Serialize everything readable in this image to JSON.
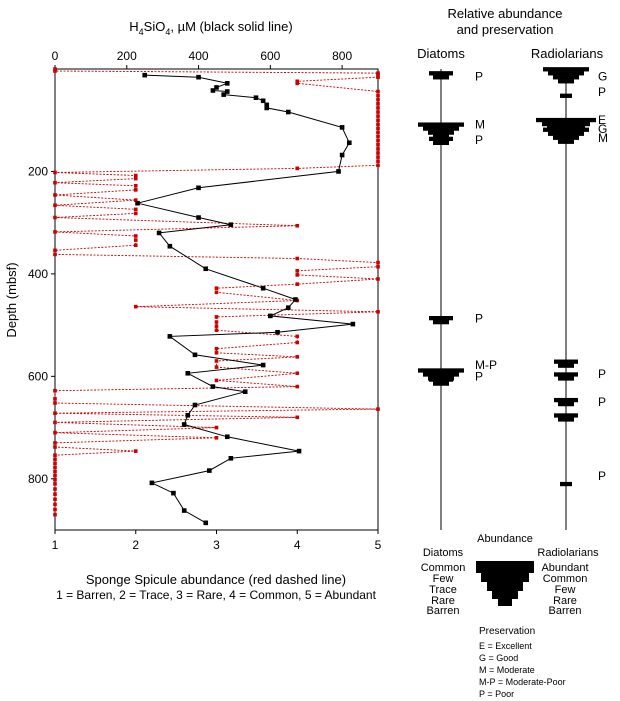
{
  "chart_data": [
    {
      "type": "line",
      "top_axis_label_pre": "H",
      "top_axis_label_sub1": "4",
      "top_axis_label_mid": "SiO",
      "top_axis_label_sub2": "4",
      "top_axis_label_post": ", µM (black solid line)",
      "bottom_axis_label": "Sponge Spicule abundance (red dashed line)",
      "bottom_axis_sublabel": "1 = Barren, 2 = Trace, 3 = Rare, 4 = Common, 5 = Abundant",
      "ylabel": "Depth (mbsf)",
      "ylim": [
        900,
        0
      ],
      "yticks": [
        200,
        400,
        600,
        800
      ],
      "top_xlim": [
        0,
        900
      ],
      "top_xticks": [
        0,
        200,
        400,
        600,
        800
      ],
      "bottom_xlim": [
        1,
        5
      ],
      "bottom_xticks": [
        1,
        2,
        3,
        4,
        5
      ],
      "grid": false,
      "series": [
        {
          "color": "#000000",
          "line": "solid",
          "x_axis": "top",
          "points": [
            [
              250,
              12
            ],
            [
              400,
              16
            ],
            [
              480,
              28
            ],
            [
              450,
              36
            ],
            [
              440,
              42
            ],
            [
              480,
              44
            ],
            [
              470,
              50
            ],
            [
              560,
              56
            ],
            [
              580,
              62
            ],
            [
              590,
              70
            ],
            [
              590,
              76
            ],
            [
              650,
              84
            ],
            [
              800,
              114
            ],
            [
              820,
              144
            ],
            [
              800,
              168
            ],
            [
              790,
              200
            ],
            [
              400,
              232
            ],
            [
              230,
              262
            ],
            [
              400,
              290
            ],
            [
              490,
              304
            ],
            [
              290,
              320
            ],
            [
              320,
              346
            ],
            [
              420,
              390
            ],
            [
              580,
              428
            ],
            [
              670,
              450
            ],
            [
              650,
              466
            ],
            [
              600,
              482
            ],
            [
              830,
              498
            ],
            [
              620,
              514
            ],
            [
              320,
              522
            ],
            [
              390,
              558
            ],
            [
              580,
              578
            ],
            [
              370,
              594
            ],
            [
              440,
              620
            ],
            [
              530,
              630
            ],
            [
              390,
              656
            ],
            [
              370,
              676
            ],
            [
              360,
              694
            ],
            [
              480,
              718
            ],
            [
              680,
              746
            ],
            [
              490,
              760
            ],
            [
              430,
              784
            ],
            [
              270,
              808
            ],
            [
              330,
              828
            ],
            [
              360,
              862
            ],
            [
              420,
              886
            ]
          ]
        },
        {
          "color": "#cc0000",
          "line": "dashed",
          "x_axis": "bottom",
          "points": [
            [
              1,
              0
            ],
            [
              1,
              4
            ],
            [
              5,
              8
            ],
            [
              5,
              12
            ],
            [
              5,
              16
            ],
            [
              4,
              24
            ],
            [
              4,
              28
            ],
            [
              5,
              44
            ],
            [
              5,
              52
            ],
            [
              5,
              60
            ],
            [
              5,
              68
            ],
            [
              5,
              76
            ],
            [
              5,
              84
            ],
            [
              5,
              92
            ],
            [
              5,
              100
            ],
            [
              5,
              108
            ],
            [
              5,
              116
            ],
            [
              5,
              124
            ],
            [
              5,
              132
            ],
            [
              5,
              140
            ],
            [
              5,
              148
            ],
            [
              5,
              156
            ],
            [
              5,
              164
            ],
            [
              5,
              172
            ],
            [
              5,
              180
            ],
            [
              5,
              188
            ],
            [
              4,
              194
            ],
            [
              1,
              202
            ],
            [
              2,
              208
            ],
            [
              2,
              214
            ],
            [
              1,
              222
            ],
            [
              2,
              228
            ],
            [
              2,
              236
            ],
            [
              1,
              246
            ],
            [
              2,
              256
            ],
            [
              1,
              266
            ],
            [
              2,
              274
            ],
            [
              2,
              282
            ],
            [
              1,
              290
            ],
            [
              4,
              306
            ],
            [
              1,
              318
            ],
            [
              2,
              326
            ],
            [
              2,
              334
            ],
            [
              2,
              344
            ],
            [
              1,
              354
            ],
            [
              1,
              362
            ],
            [
              4,
              370
            ],
            [
              5,
              378
            ],
            [
              5,
              386
            ],
            [
              4,
              394
            ],
            [
              4,
              402
            ],
            [
              5,
              410
            ],
            [
              4,
              420
            ],
            [
              3,
              428
            ],
            [
              3,
              436
            ],
            [
              4,
              452
            ],
            [
              2,
              464
            ],
            [
              5,
              474
            ],
            [
              3,
              484
            ],
            [
              3,
              494
            ],
            [
              3,
              502
            ],
            [
              3,
              510
            ],
            [
              4,
              522
            ],
            [
              4,
              534
            ],
            [
              3,
              546
            ],
            [
              3,
              554
            ],
            [
              4,
              562
            ],
            [
              3,
              570
            ],
            [
              3,
              582
            ],
            [
              4,
              594
            ],
            [
              3,
              608
            ],
            [
              4,
              620
            ],
            [
              1,
              628
            ],
            [
              1,
              644
            ],
            [
              1,
              652
            ],
            [
              5,
              664
            ],
            [
              1,
              672
            ],
            [
              4,
              680
            ],
            [
              1,
              690
            ],
            [
              3,
              700
            ],
            [
              1,
              710
            ],
            [
              3,
              720
            ],
            [
              1,
              730
            ],
            [
              1,
              738
            ],
            [
              2,
              746
            ],
            [
              1,
              754
            ],
            [
              1,
              762
            ],
            [
              1,
              770
            ],
            [
              1,
              778
            ],
            [
              1,
              786
            ],
            [
              1,
              794
            ],
            [
              1,
              802
            ],
            [
              1,
              810
            ],
            [
              1,
              820
            ],
            [
              1,
              830
            ],
            [
              1,
              840
            ],
            [
              1,
              850
            ],
            [
              1,
              860
            ],
            [
              1,
              870
            ]
          ]
        }
      ]
    },
    {
      "type": "other",
      "title_line1": "Relative abundance",
      "title_line2": "and preservation",
      "columns": [
        {
          "name": "Diatoms",
          "marks": [
            {
              "depth": 12,
              "abundance": "Few",
              "preservation": "P"
            },
            {
              "depth": 120,
              "abundance": "Common",
              "preservation": "M"
            },
            {
              "depth": 140,
              "abundance": "Few",
              "preservation": "P"
            },
            {
              "depth": 490,
              "abundance": "Few",
              "preservation": "P"
            },
            {
              "depth": 600,
              "abundance": "Common",
              "preservation": "M-P"
            },
            {
              "depth": 610,
              "abundance": "Few",
              "preservation": "P"
            }
          ],
          "preservation_labels": [
            {
              "text": "P",
              "depth": 15
            },
            {
              "text": "M",
              "depth": 108
            },
            {
              "text": "P",
              "depth": 139
            },
            {
              "text": "P",
              "depth": 487
            },
            {
              "text": "M-P",
              "depth": 578
            },
            {
              "text": "P",
              "depth": 600
            }
          ]
        },
        {
          "name": "Radiolarians",
          "marks": [
            {
              "depth": 12,
              "abundance": "Common"
            },
            {
              "depth": 52,
              "abundance": "Rare"
            },
            {
              "depth": 115,
              "abundance": "Abundant"
            },
            {
              "depth": 130,
              "abundance": "Common"
            },
            {
              "depth": 575,
              "abundance": "Few"
            },
            {
              "depth": 600,
              "abundance": "Few"
            },
            {
              "depth": 650,
              "abundance": "Few"
            },
            {
              "depth": 680,
              "abundance": "Few"
            },
            {
              "depth": 810,
              "abundance": "Rare"
            }
          ],
          "preservation_labels": [
            {
              "text": "G",
              "depth": 15
            },
            {
              "text": "P",
              "depth": 45
            },
            {
              "text": "E",
              "depth": 100
            },
            {
              "text": "G",
              "depth": 117
            },
            {
              "text": "M",
              "depth": 135
            },
            {
              "text": "P",
              "depth": 595
            },
            {
              "text": "P",
              "depth": 650
            },
            {
              "text": "P",
              "depth": 795
            }
          ]
        }
      ]
    }
  ],
  "legend": {
    "title": "Abundance",
    "left_header": "Diatoms",
    "right_header": "Radiolarians",
    "left_levels": [
      "Common",
      "Few",
      "Trace",
      "Rare",
      "Barren"
    ],
    "right_levels": [
      "Abundant",
      "Common",
      "Few",
      "Rare",
      "Barren"
    ],
    "preservation_title": "Preservation",
    "preservation_items": [
      "E = Excellent",
      "G = Good",
      "M = Moderate",
      "M-P = Moderate-Poor",
      "P = Poor"
    ]
  }
}
